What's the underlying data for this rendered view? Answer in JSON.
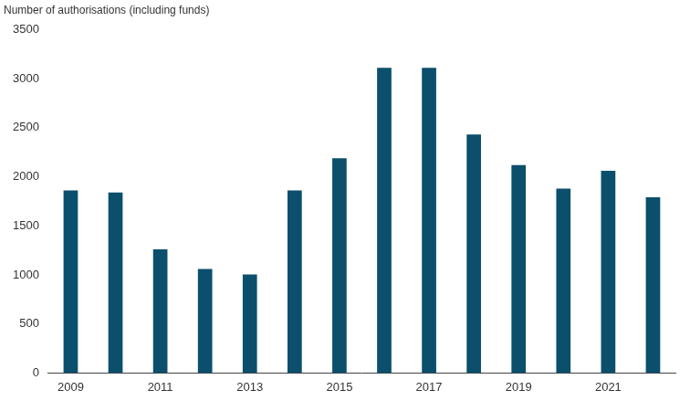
{
  "chart_data": {
    "type": "bar",
    "ylabel": "Number of authorisations (including funds)",
    "categories": [
      "2009",
      null,
      "2011",
      null,
      "2013",
      null,
      "2015",
      null,
      "2017",
      null,
      "2019",
      null,
      "2021",
      null
    ],
    "values": [
      1860,
      1840,
      1260,
      1060,
      1005,
      1860,
      2190,
      3110,
      3110,
      2430,
      2120,
      1880,
      2060,
      1790
    ],
    "color": "#0b4f6c",
    "ylim": [
      0,
      3500
    ],
    "yticks": [
      0,
      500,
      1000,
      1500,
      2000,
      2500,
      3000,
      3500
    ],
    "grid": false
  }
}
